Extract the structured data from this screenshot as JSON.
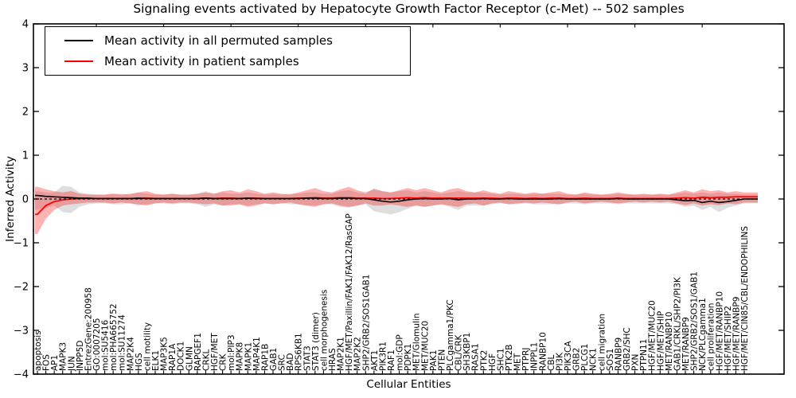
{
  "figure": {
    "title": "Signaling events activated by Hepatocyte Growth Factor Receptor (c-Met) -- 502 samples",
    "background": "#ffffff"
  },
  "legend": {
    "items": [
      {
        "label": "Mean activity in all permuted samples",
        "color": "#000000"
      },
      {
        "label": "Mean activity in patient samples",
        "color": "#ff0000"
      }
    ],
    "position": "upper left"
  },
  "chart_data": {
    "type": "line",
    "title": "Signaling events activated by Hepatocyte Growth Factor Receptor (c-Met) -- 502 samples",
    "xlabel": "Cellular Entities",
    "ylabel": "Inferred Activity",
    "ylim": [
      -4,
      4
    ],
    "y_ticks": [
      4,
      3,
      2,
      1,
      0,
      -1,
      -2,
      -3,
      -4
    ],
    "y_tick_labels": [
      "4",
      "3",
      "2",
      "1",
      "0",
      "−1",
      "−2",
      "−3",
      "−4"
    ],
    "grid": false,
    "legend_position": "upper left",
    "colors": {
      "patient": "#ff0000",
      "permuted": "#000000",
      "patient_band": "rgba(255,0,0,0.30)",
      "permuted_band": "rgba(0,0,0,0.13)"
    },
    "zero_line": {
      "value": 0,
      "style": "dashed",
      "color": "#000000"
    },
    "categories": [
      "apoptosis",
      "FOS",
      "AP1",
      "MAPK3",
      "JUN",
      "INPP5D",
      "EntrezGene:200958",
      "GO:0007205",
      "mol:SU5416",
      "mol:PHA665752",
      "mol:SU11274",
      "MAP2K4",
      "HGS",
      "cell motility",
      "ELK1",
      "MAP3K5",
      "RAP1A",
      "DOCK1",
      "GLMN",
      "RAPGEF1",
      "CRKL",
      "HGF/MET",
      "CRK",
      "mol:PIP3",
      "MAPK8",
      "MAPK1",
      "MAP4K1",
      "RAP1B",
      "GAB1",
      "SRC",
      "BAD",
      "RPS6KB1",
      "STAT3",
      "STAT3 (dimer)",
      "cell morphogenesis",
      "HRAS",
      "MAP2K1",
      "HGF/MET/Paxillin/FAK1/FAK12/RasGAP",
      "MAP2K2",
      "SHP2/GRB2/SOS1GAB1",
      "AKT1",
      "PIK3R1",
      "RAF1",
      "mol:GDP",
      "PDPK1",
      "MET/Glomulin",
      "MET/MUC20",
      "PAK1",
      "PTEN",
      "PLCgamma1/PKC",
      "CBL/CRK",
      "SH3KBP1",
      "RASA1",
      "PTK2",
      "HGF",
      "SHC1",
      "PTK2B",
      "MET",
      "PTPRJ",
      "INPPL1",
      "RANBP10",
      "CBL",
      "PI3K",
      "PIK3CA",
      "GRB2",
      "PLCG1",
      "NCK1",
      "cell migration",
      "SOS1",
      "RANBP9",
      "GRB2/SHC",
      "PXN",
      "PTPN11",
      "HGF/MET/MUC20",
      "HGF/MET/SHIP",
      "MET/RANBP10",
      "GAB1/CRKL/SHP2/PI3K",
      "MET/RANBP9",
      "SHP2/GRB2/SOS1/GAB1",
      "NCK/PLCgamma1",
      "cell proliferation",
      "HGF/MET/RANBP10",
      "HGF/MET/SHIP2",
      "HGF/MET/RANBP9",
      "HGF/MET/CIN85/CBL/ENDOPHILINS"
    ],
    "series": [
      {
        "name": "Mean activity in all permuted samples",
        "color": "#000000",
        "style": "solid",
        "values": [
          0.08,
          0.06,
          0.05,
          0.04,
          0.03,
          0.02,
          0.02,
          0.01,
          0.01,
          0.01,
          0.01,
          0.01,
          0.02,
          0.01,
          0.01,
          0.01,
          0.01,
          0.01,
          0.01,
          0.01,
          0.02,
          0.01,
          0.01,
          0.01,
          0.01,
          0.02,
          0.01,
          0.01,
          0.01,
          0.01,
          0.01,
          0.01,
          0.02,
          0.02,
          0.01,
          0.01,
          0.02,
          0.02,
          0.01,
          0.01,
          -0.02,
          -0.05,
          -0.07,
          -0.05,
          -0.02,
          0.0,
          0.01,
          0.0,
          0.0,
          0.01,
          -0.02,
          0.0,
          0.0,
          0.01,
          0.0,
          0.0,
          0.01,
          0.0,
          0.0,
          0.0,
          0.0,
          0.0,
          0.01,
          0.0,
          0.0,
          0.0,
          0.0,
          0.0,
          0.0,
          0.01,
          0.0,
          0.0,
          0.0,
          0.0,
          0.0,
          0.0,
          -0.02,
          -0.04,
          -0.03,
          -0.08,
          -0.05,
          -0.08,
          -0.06,
          -0.03,
          0.0
        ]
      },
      {
        "name": "Mean activity in patient samples",
        "color": "#ff0000",
        "style": "solid",
        "values": [
          -0.35,
          -0.15,
          -0.06,
          -0.02,
          0.0,
          0.01,
          0.01,
          0.01,
          0.01,
          0.01,
          0.01,
          0.01,
          0.01,
          0.02,
          0.01,
          0.01,
          0.01,
          0.01,
          0.01,
          0.01,
          0.02,
          0.01,
          0.02,
          0.02,
          0.01,
          0.02,
          0.02,
          0.01,
          0.01,
          0.01,
          0.01,
          0.02,
          0.02,
          0.03,
          0.02,
          0.02,
          0.03,
          0.03,
          0.02,
          0.02,
          0.02,
          0.01,
          0.01,
          0.02,
          0.03,
          0.02,
          0.03,
          0.02,
          0.02,
          0.02,
          0.02,
          0.02,
          0.02,
          0.02,
          0.02,
          0.01,
          0.02,
          0.02,
          0.01,
          0.02,
          0.01,
          0.02,
          0.02,
          0.01,
          0.01,
          0.02,
          0.01,
          0.01,
          0.01,
          0.02,
          0.01,
          0.01,
          0.01,
          0.01,
          0.01,
          0.01,
          0.02,
          0.03,
          0.02,
          0.04,
          0.03,
          0.04,
          0.04,
          0.05,
          0.05
        ]
      }
    ],
    "bands": [
      {
        "name": "permuted-band",
        "upper": [
          0.18,
          0.15,
          0.15,
          0.3,
          0.28,
          0.15,
          0.12,
          0.1,
          0.1,
          0.12,
          0.12,
          0.1,
          0.15,
          0.12,
          0.1,
          0.1,
          0.12,
          0.1,
          0.1,
          0.12,
          0.18,
          0.12,
          0.15,
          0.12,
          0.12,
          0.15,
          0.12,
          0.1,
          0.12,
          0.1,
          0.12,
          0.12,
          0.15,
          0.15,
          0.12,
          0.12,
          0.18,
          0.2,
          0.15,
          0.12,
          0.25,
          0.18,
          0.15,
          0.18,
          0.2,
          0.15,
          0.18,
          0.15,
          0.12,
          0.15,
          0.18,
          0.15,
          0.15,
          0.15,
          0.12,
          0.1,
          0.12,
          0.12,
          0.1,
          0.12,
          0.12,
          0.12,
          0.12,
          0.1,
          0.1,
          0.12,
          0.1,
          0.1,
          0.1,
          0.12,
          0.1,
          0.1,
          0.1,
          0.1,
          0.1,
          0.1,
          0.12,
          0.15,
          0.12,
          0.15,
          0.12,
          0.15,
          0.12,
          0.12,
          0.1
        ],
        "lower": [
          -0.25,
          -0.2,
          -0.15,
          -0.3,
          -0.32,
          -0.18,
          -0.12,
          -0.1,
          -0.1,
          -0.12,
          -0.12,
          -0.1,
          -0.15,
          -0.12,
          -0.1,
          -0.1,
          -0.12,
          -0.1,
          -0.1,
          -0.12,
          -0.18,
          -0.12,
          -0.15,
          -0.12,
          -0.12,
          -0.15,
          -0.12,
          -0.1,
          -0.12,
          -0.1,
          -0.12,
          -0.12,
          -0.15,
          -0.15,
          -0.12,
          -0.12,
          -0.18,
          -0.2,
          -0.15,
          -0.12,
          -0.28,
          -0.32,
          -0.35,
          -0.3,
          -0.22,
          -0.15,
          -0.18,
          -0.15,
          -0.12,
          -0.18,
          -0.25,
          -0.15,
          -0.15,
          -0.15,
          -0.12,
          -0.1,
          -0.12,
          -0.12,
          -0.1,
          -0.12,
          -0.12,
          -0.12,
          -0.12,
          -0.1,
          -0.1,
          -0.12,
          -0.1,
          -0.1,
          -0.1,
          -0.12,
          -0.1,
          -0.1,
          -0.1,
          -0.1,
          -0.1,
          -0.1,
          -0.12,
          -0.18,
          -0.15,
          -0.25,
          -0.18,
          -0.3,
          -0.2,
          -0.15,
          -0.1
        ]
      },
      {
        "name": "patient-band",
        "upper": [
          0.28,
          0.22,
          0.18,
          0.15,
          0.18,
          0.12,
          0.1,
          0.1,
          0.1,
          0.12,
          0.1,
          0.12,
          0.15,
          0.18,
          0.12,
          0.1,
          0.12,
          0.1,
          0.1,
          0.12,
          0.15,
          0.12,
          0.18,
          0.2,
          0.15,
          0.22,
          0.18,
          0.12,
          0.15,
          0.12,
          0.1,
          0.15,
          0.2,
          0.25,
          0.18,
          0.15,
          0.22,
          0.28,
          0.2,
          0.15,
          0.22,
          0.18,
          0.15,
          0.2,
          0.25,
          0.2,
          0.25,
          0.2,
          0.15,
          0.22,
          0.25,
          0.18,
          0.15,
          0.2,
          0.15,
          0.12,
          0.18,
          0.15,
          0.12,
          0.15,
          0.12,
          0.15,
          0.18,
          0.12,
          0.1,
          0.15,
          0.12,
          0.1,
          0.12,
          0.15,
          0.12,
          0.1,
          0.12,
          0.1,
          0.12,
          0.1,
          0.15,
          0.2,
          0.15,
          0.22,
          0.18,
          0.2,
          0.15,
          0.18,
          0.15
        ],
        "lower": [
          -0.8,
          -0.45,
          -0.25,
          -0.15,
          -0.12,
          -0.1,
          -0.08,
          -0.08,
          -0.08,
          -0.1,
          -0.08,
          -0.1,
          -0.12,
          -0.15,
          -0.1,
          -0.08,
          -0.1,
          -0.08,
          -0.08,
          -0.1,
          -0.12,
          -0.1,
          -0.15,
          -0.15,
          -0.12,
          -0.18,
          -0.15,
          -0.1,
          -0.12,
          -0.1,
          -0.08,
          -0.12,
          -0.15,
          -0.18,
          -0.12,
          -0.1,
          -0.15,
          -0.18,
          -0.15,
          -0.1,
          -0.15,
          -0.15,
          -0.12,
          -0.15,
          -0.18,
          -0.15,
          -0.18,
          -0.15,
          -0.12,
          -0.15,
          -0.18,
          -0.12,
          -0.1,
          -0.15,
          -0.1,
          -0.08,
          -0.12,
          -0.1,
          -0.08,
          -0.1,
          -0.08,
          -0.1,
          -0.12,
          -0.08,
          -0.06,
          -0.1,
          -0.08,
          -0.06,
          -0.08,
          -0.1,
          -0.08,
          -0.06,
          -0.08,
          -0.06,
          -0.08,
          -0.06,
          -0.1,
          -0.14,
          -0.1,
          -0.15,
          -0.12,
          -0.14,
          -0.1,
          -0.12,
          -0.08
        ]
      }
    ]
  }
}
